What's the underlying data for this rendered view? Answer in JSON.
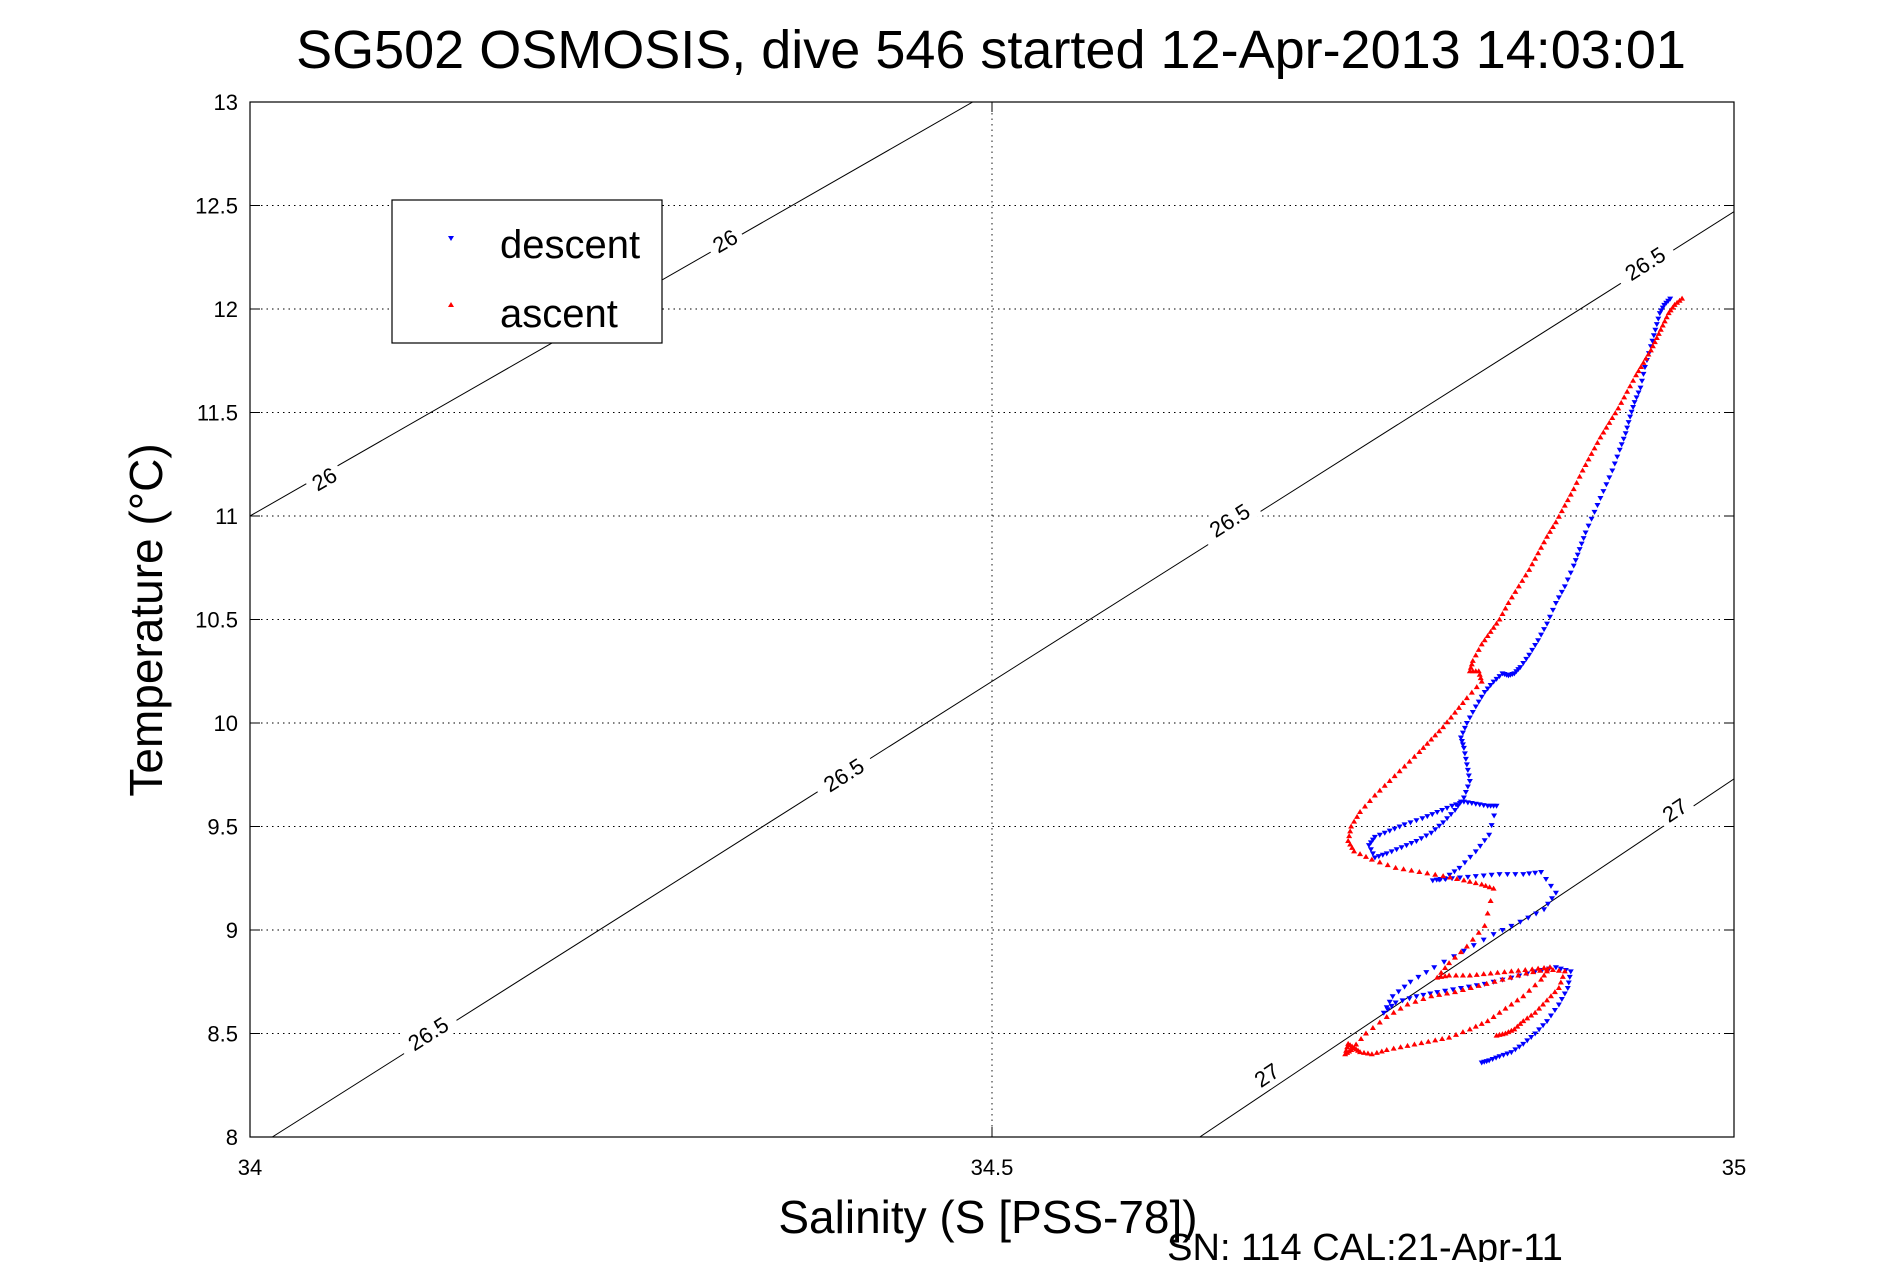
{
  "chart_data": {
    "type": "scatter",
    "title": "SG502 OSMOSIS, dive 546 started 12-Apr-2013 14:03:01",
    "xlabel": "Salinity (S [PSS-78])",
    "ylabel": "Temperature (°C)",
    "footer": "SN: 114  CAL:21-Apr-11",
    "xlim": [
      34,
      35
    ],
    "ylim": [
      8,
      13
    ],
    "xticks": [
      "34",
      "34.5",
      "35"
    ],
    "yticks": [
      "8",
      "8.5",
      "9",
      "9.5",
      "10",
      "10.5",
      "11",
      "11.5",
      "12",
      "12.5",
      "13"
    ],
    "grid": true,
    "legend": {
      "position": "top-left",
      "entries": [
        "descent",
        "ascent"
      ]
    },
    "isopycnals": [
      {
        "label": "26",
        "points": [
          [
            34.0,
            11.0
          ],
          [
            34.487,
            13.0
          ]
        ],
        "labels_at": [
          [
            34.05,
            11.18
          ],
          [
            34.32,
            12.33
          ]
        ]
      },
      {
        "label": "26.5",
        "points": [
          [
            34.015,
            8.0
          ],
          [
            35.0,
            12.47
          ]
        ],
        "labels_at": [
          [
            34.12,
            8.5
          ],
          [
            34.4,
            9.75
          ],
          [
            34.66,
            10.98
          ],
          [
            34.94,
            12.22
          ]
        ]
      },
      {
        "label": "27",
        "points": [
          [
            34.64,
            8.0
          ],
          [
            35.0,
            9.73
          ]
        ],
        "labels_at": [
          [
            34.685,
            8.3
          ],
          [
            34.96,
            9.58
          ]
        ]
      }
    ],
    "series": [
      {
        "name": "descent",
        "color": "#0000ff",
        "marker": "triangle-down",
        "x": [
          34.957,
          34.953,
          34.95,
          34.947,
          34.944,
          34.94,
          34.937,
          34.933,
          34.93,
          34.927,
          34.923,
          34.918,
          34.912,
          34.906,
          34.9,
          34.896,
          34.892,
          34.886,
          34.88,
          34.874,
          34.868,
          34.862,
          34.856,
          34.852,
          34.848,
          34.844,
          34.838,
          34.832,
          34.826,
          34.82,
          34.816,
          34.818,
          34.82,
          34.822,
          34.818,
          34.812,
          34.804,
          34.796,
          34.786,
          34.776,
          34.766,
          34.758,
          34.754,
          34.758,
          34.768,
          34.778,
          34.79,
          34.8,
          34.81,
          34.818,
          34.826,
          34.834,
          34.84,
          34.835,
          34.826,
          34.815,
          34.805,
          34.797,
          34.81,
          34.826,
          34.842,
          34.858,
          34.87,
          34.88,
          34.872,
          34.856,
          34.838,
          34.818,
          34.798,
          34.782,
          34.77,
          34.764,
          34.772,
          34.786,
          34.8,
          34.816,
          34.832,
          34.85,
          34.866,
          34.88,
          34.89,
          34.888,
          34.882,
          34.874,
          34.866,
          34.858,
          34.85,
          34.842,
          34.835,
          34.83
        ],
        "y": [
          12.05,
          12.02,
          11.98,
          11.9,
          11.82,
          11.72,
          11.62,
          11.55,
          11.48,
          11.4,
          11.32,
          11.22,
          11.12,
          11.02,
          10.92,
          10.84,
          10.76,
          10.66,
          10.58,
          10.48,
          10.4,
          10.33,
          10.27,
          10.24,
          10.23,
          10.24,
          10.2,
          10.15,
          10.08,
          10.0,
          9.93,
          9.88,
          9.8,
          9.72,
          9.64,
          9.58,
          9.52,
          9.47,
          9.43,
          9.4,
          9.37,
          9.35,
          9.41,
          9.45,
          9.48,
          9.51,
          9.54,
          9.57,
          9.6,
          9.62,
          9.61,
          9.6,
          9.6,
          9.46,
          9.38,
          9.3,
          9.25,
          9.24,
          9.25,
          9.26,
          9.27,
          9.27,
          9.28,
          9.18,
          9.1,
          9.04,
          8.98,
          8.9,
          8.82,
          8.75,
          8.68,
          8.6,
          8.65,
          8.68,
          8.7,
          8.72,
          8.74,
          8.77,
          8.8,
          8.82,
          8.8,
          8.72,
          8.64,
          8.56,
          8.5,
          8.45,
          8.41,
          8.39,
          8.37,
          8.36
        ]
      },
      {
        "name": "ascent",
        "color": "#ff0000",
        "marker": "triangle-up",
        "x": [
          34.965,
          34.96,
          34.956,
          34.952,
          34.948,
          34.944,
          34.939,
          34.934,
          34.928,
          34.922,
          34.916,
          34.91,
          34.904,
          34.898,
          34.892,
          34.886,
          34.88,
          34.874,
          34.868,
          34.862,
          34.855,
          34.848,
          34.842,
          34.836,
          34.83,
          34.824,
          34.822,
          34.828,
          34.83,
          34.82,
          34.812,
          34.804,
          34.796,
          34.788,
          34.778,
          34.768,
          34.758,
          34.748,
          34.742,
          34.74,
          34.744,
          34.756,
          34.772,
          34.788,
          34.804,
          34.818,
          34.83,
          34.838,
          34.832,
          34.82,
          34.808,
          34.8,
          34.808,
          34.822,
          34.836,
          34.85,
          34.864,
          34.876,
          34.87,
          34.858,
          34.846,
          34.834,
          34.822,
          34.808,
          34.794,
          34.78,
          34.766,
          34.756,
          34.748,
          34.744,
          34.74,
          34.738,
          34.742,
          34.752,
          34.766,
          34.78,
          34.796,
          34.812,
          34.828,
          34.844,
          34.86,
          34.874,
          34.886,
          34.882,
          34.874,
          34.866,
          34.858,
          34.852,
          34.846,
          34.84
        ],
        "y": [
          12.05,
          12.02,
          11.98,
          11.92,
          11.86,
          11.8,
          11.74,
          11.68,
          11.6,
          11.52,
          11.45,
          11.38,
          11.3,
          11.22,
          11.13,
          11.05,
          10.97,
          10.9,
          10.82,
          10.74,
          10.66,
          10.58,
          10.5,
          10.44,
          10.38,
          10.3,
          10.25,
          10.25,
          10.2,
          10.12,
          10.05,
          9.98,
          9.92,
          9.86,
          9.79,
          9.72,
          9.65,
          9.57,
          9.5,
          9.43,
          9.38,
          9.34,
          9.3,
          9.28,
          9.26,
          9.24,
          9.22,
          9.2,
          9.02,
          8.92,
          8.84,
          8.77,
          8.78,
          8.78,
          8.79,
          8.8,
          8.81,
          8.82,
          8.76,
          8.68,
          8.62,
          8.56,
          8.52,
          8.48,
          8.46,
          8.44,
          8.42,
          8.4,
          8.41,
          8.43,
          8.45,
          8.4,
          8.42,
          8.5,
          8.58,
          8.64,
          8.68,
          8.7,
          8.73,
          8.76,
          8.79,
          8.81,
          8.8,
          8.72,
          8.66,
          8.6,
          8.56,
          8.52,
          8.5,
          8.49
        ]
      }
    ]
  }
}
